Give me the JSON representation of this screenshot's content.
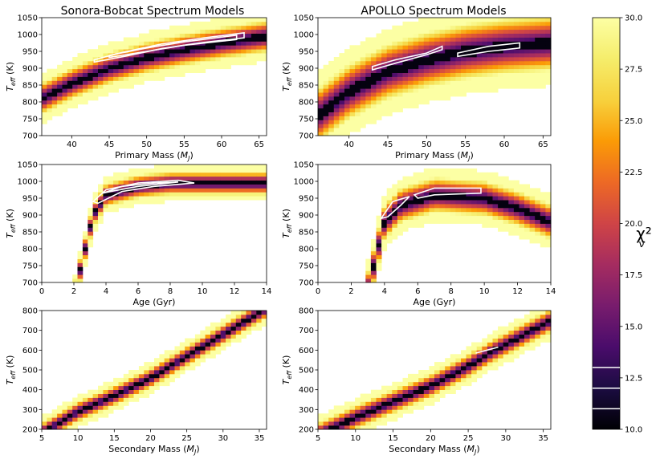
{
  "chart_data": {
    "type": "heatmap",
    "colorbar": {
      "label": "χ²",
      "label_sub": "ν",
      "range": [
        10.0,
        30.0
      ],
      "ticks": [
        "10.0",
        "12.5",
        "15.0",
        "17.5",
        "20.0",
        "22.5",
        "25.0",
        "27.5",
        "30.0"
      ],
      "tick_values": [
        10,
        12.5,
        15,
        17.5,
        20,
        22.5,
        25,
        27.5,
        30
      ],
      "contour_levels": [
        11.0,
        12.0,
        13.0
      ],
      "colormap": "inferno"
    },
    "columns": [
      {
        "title": "Sonora-Bobcat Spectrum Models"
      },
      {
        "title": "APOLLO Spectrum Models"
      }
    ],
    "panels": [
      {
        "id": "sonora-mass",
        "col": 0,
        "row": 0,
        "xlabel": "Primary Mass",
        "xunit": "J",
        "ylabel": "T",
        "ysub": "eff",
        "yunit": "(K)",
        "xlim": [
          36,
          66
        ],
        "ylim": [
          700,
          1050
        ],
        "xticks": [
          40,
          45,
          50,
          55,
          60,
          65
        ],
        "yticks": [
          700,
          750,
          800,
          850,
          900,
          950,
          1000,
          1050
        ],
        "band_center": [
          [
            36,
            810
          ],
          [
            40,
            855
          ],
          [
            45,
            900
          ],
          [
            50,
            932
          ],
          [
            55,
            955
          ],
          [
            60,
            975
          ],
          [
            63,
            985
          ]
        ],
        "band_width": 55,
        "contours": [
          [
            [
              43,
              925
            ],
            [
              47,
              948
            ],
            [
              52,
              972
            ],
            [
              57,
              988
            ],
            [
              63,
              1005
            ],
            [
              63,
              990
            ],
            [
              57,
              975
            ],
            [
              52,
              958
            ],
            [
              47,
              935
            ],
            [
              43,
              918
            ]
          ],
          [
            [
              45,
              938
            ],
            [
              50,
              960
            ],
            [
              55,
              978
            ],
            [
              62,
              998
            ],
            [
              62,
              985
            ],
            [
              55,
              968
            ],
            [
              50,
              950
            ],
            [
              45,
              932
            ]
          ]
        ]
      },
      {
        "id": "apollo-mass",
        "col": 1,
        "row": 0,
        "xlabel": "Primary Mass",
        "xunit": "J",
        "ylabel": "T",
        "ysub": "eff",
        "yunit": "(K)",
        "xlim": [
          36,
          66
        ],
        "ylim": [
          700,
          1050
        ],
        "xticks": [
          40,
          45,
          50,
          55,
          60,
          65
        ],
        "yticks": [
          700,
          750,
          800,
          850,
          900,
          950,
          1000,
          1050
        ],
        "band_center": [
          [
            36,
            760
          ],
          [
            40,
            830
          ],
          [
            45,
            890
          ],
          [
            50,
            925
          ],
          [
            55,
            950
          ],
          [
            60,
            965
          ],
          [
            63,
            970
          ]
        ],
        "band_width": 95,
        "contours": [
          [
            [
              43,
              895
            ],
            [
              46,
              915
            ],
            [
              50,
              940
            ],
            [
              52,
              955
            ],
            [
              52,
              965
            ],
            [
              50,
              945
            ],
            [
              46,
              925
            ],
            [
              43,
              905
            ]
          ],
          [
            [
              54,
              945
            ],
            [
              58,
              965
            ],
            [
              62,
              975
            ],
            [
              62,
              960
            ],
            [
              58,
              950
            ],
            [
              54,
              935
            ]
          ]
        ]
      },
      {
        "id": "sonora-age",
        "col": 0,
        "row": 1,
        "xlabel": "Age (Gyr)",
        "xunit": "",
        "ylabel": "T",
        "ysub": "eff",
        "yunit": "(K)",
        "xlim": [
          0,
          14
        ],
        "ylim": [
          700,
          1050
        ],
        "xticks": [
          0,
          2,
          4,
          6,
          8,
          10,
          12,
          14
        ],
        "yticks": [
          700,
          750,
          800,
          850,
          900,
          950,
          1000,
          1050
        ],
        "band_center": [
          [
            2.7,
            800
          ],
          [
            3.2,
            900
          ],
          [
            4,
            960
          ],
          [
            6,
            985
          ],
          [
            8,
            995
          ],
          [
            10,
            995
          ]
        ],
        "band_width": 40,
        "contours": [
          [
            [
              3.2,
              940
            ],
            [
              4,
              975
            ],
            [
              6,
              995
            ],
            [
              8.5,
              1003
            ],
            [
              9.5,
              995
            ],
            [
              7,
              985
            ],
            [
              5,
              970
            ],
            [
              3.5,
              935
            ]
          ],
          [
            [
              3.8,
              965
            ],
            [
              5,
              985
            ],
            [
              7,
              995
            ],
            [
              8.5,
              998
            ],
            [
              6,
              985
            ],
            [
              4.5,
              972
            ]
          ]
        ]
      },
      {
        "id": "apollo-age",
        "col": 1,
        "row": 1,
        "xlabel": "Age (Gyr)",
        "xunit": "",
        "ylabel": "T",
        "ysub": "eff",
        "yunit": "(K)",
        "xlim": [
          0,
          14
        ],
        "ylim": [
          700,
          1050
        ],
        "xticks": [
          0,
          2,
          4,
          6,
          8,
          10,
          12,
          14
        ],
        "yticks": [
          700,
          750,
          800,
          850,
          900,
          950,
          1000,
          1050
        ],
        "band_center": [
          [
            3.5,
            780
          ],
          [
            4,
            880
          ],
          [
            5,
            930
          ],
          [
            7,
            960
          ],
          [
            10,
            950
          ],
          [
            12,
            920
          ],
          [
            14,
            880
          ]
        ],
        "band_width": 60,
        "contours": [
          [
            [
              3.8,
              890
            ],
            [
              4.5,
              940
            ],
            [
              5.5,
              955
            ],
            [
              5,
              930
            ],
            [
              4.2,
              895
            ]
          ],
          [
            [
              5.8,
              960
            ],
            [
              7,
              980
            ],
            [
              9.8,
              980
            ],
            [
              9.8,
              965
            ],
            [
              7,
              960
            ],
            [
              6,
              950
            ]
          ]
        ]
      },
      {
        "id": "sonora-secondary",
        "col": 0,
        "row": 2,
        "xlabel": "Secondary Mass",
        "xunit": "J",
        "ylabel": "T",
        "ysub": "eff",
        "yunit": "(K)",
        "xlim": [
          5,
          36
        ],
        "ylim": [
          200,
          800
        ],
        "xticks": [
          5,
          10,
          15,
          20,
          25,
          30,
          35
        ],
        "yticks": [
          200,
          300,
          400,
          500,
          600,
          700,
          800
        ],
        "band_center": [
          [
            7,
            225
          ],
          [
            10,
            290
          ],
          [
            15,
            370
          ],
          [
            20,
            460
          ],
          [
            25,
            570
          ],
          [
            30,
            680
          ],
          [
            35,
            790
          ]
        ],
        "band_width": 60,
        "contours": []
      },
      {
        "id": "apollo-secondary",
        "col": 1,
        "row": 2,
        "xlabel": "Secondary Mass",
        "xunit": "J",
        "ylabel": "T",
        "ysub": "eff",
        "yunit": "(K)",
        "xlim": [
          5,
          36
        ],
        "ylim": [
          200,
          800
        ],
        "xticks": [
          5,
          10,
          15,
          20,
          25,
          30,
          35
        ],
        "yticks": [
          200,
          300,
          400,
          500,
          600,
          700,
          800
        ],
        "band_center": [
          [
            8,
            225
          ],
          [
            10,
            260
          ],
          [
            15,
            340
          ],
          [
            20,
            420
          ],
          [
            25,
            520
          ],
          [
            28,
            590
          ],
          [
            30,
            630
          ],
          [
            35,
            730
          ]
        ],
        "band_width": 70,
        "contours": [
          [
            [
              26,
              585
            ],
            [
              28,
              605
            ],
            [
              29,
              615
            ],
            [
              27,
              595
            ]
          ]
        ]
      }
    ]
  }
}
